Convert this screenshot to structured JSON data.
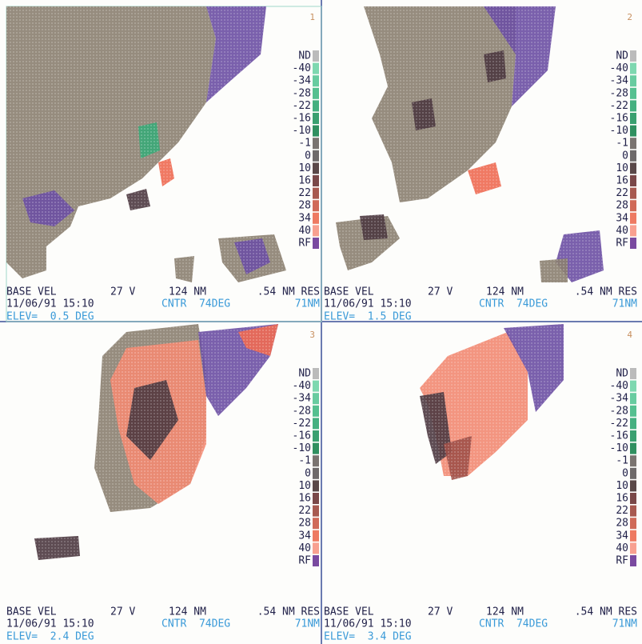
{
  "panels": [
    {
      "number": "1",
      "legend": [
        "ND",
        "-40",
        "-34",
        "-28",
        "-22",
        "-16",
        "-10",
        "-1",
        "0",
        "10",
        "16",
        "22",
        "28",
        "34",
        "40",
        "RF"
      ],
      "product": "BASE VEL",
      "mode": "27 V",
      "range": "124 NM",
      "resolution": ".54 NM RES",
      "datetime": "11/06/91 15:10",
      "center": "CNTR  74DEG",
      "distance": "71NM",
      "elevation": "ELEV=  0.5 DEG"
    },
    {
      "number": "2",
      "legend": [
        "ND",
        "-40",
        "-34",
        "-28",
        "-22",
        "-16",
        "-10",
        "-1",
        "0",
        "10",
        "16",
        "22",
        "28",
        "34",
        "40",
        "RF"
      ],
      "product": "BASE VEL",
      "mode": "27 V",
      "range": "124 NM",
      "resolution": ".54 NM RES",
      "datetime": "11/06/91 15:10",
      "center": "CNTR  74DEG",
      "distance": "71NM",
      "elevation": "ELEV=  1.5 DEG"
    },
    {
      "number": "3",
      "legend": [
        "ND",
        "-40",
        "-34",
        "-28",
        "-22",
        "-16",
        "-10",
        "-1",
        "0",
        "10",
        "16",
        "22",
        "28",
        "34",
        "40",
        "RF"
      ],
      "product": "BASE VEL",
      "mode": "27 V",
      "range": "124 NM",
      "resolution": ".54 NM RES",
      "datetime": "11/06/91 15:10",
      "center": "CNTR  74DEG",
      "distance": "71NM",
      "elevation": "ELEV=  2.4 DEG"
    },
    {
      "number": "4",
      "legend": [
        "ND",
        "-40",
        "-34",
        "-28",
        "-22",
        "-16",
        "-10",
        "-1",
        "0",
        "10",
        "16",
        "22",
        "28",
        "34",
        "40",
        "RF"
      ],
      "product": "BASE VEL",
      "mode": "27 V",
      "range": "124 NM",
      "resolution": ".54 NM RES",
      "datetime": "11/06/91 15:10",
      "center": "CNTR  74DEG",
      "distance": "71NM",
      "elevation": "ELEV=  3.4 DEG"
    }
  ]
}
